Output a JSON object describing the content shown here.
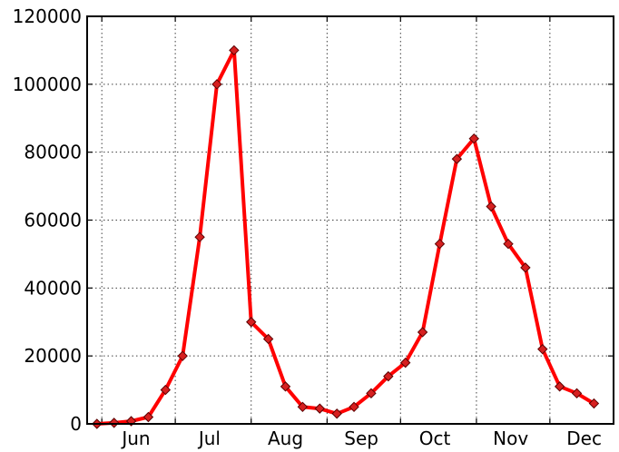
{
  "chart_data": {
    "type": "line",
    "title": "",
    "xlabel": "",
    "ylabel": "",
    "grid": true,
    "legend": "none",
    "xlim": [
      "2012-05-26",
      "2012-12-27"
    ],
    "ylim": [
      0,
      120000
    ],
    "x_tick_labels": [
      {
        "date": "2012-06-15",
        "label": "Jun"
      },
      {
        "date": "2012-07-15",
        "label": "Jul"
      },
      {
        "date": "2012-08-15",
        "label": "Aug"
      },
      {
        "date": "2012-09-15",
        "label": "Sep"
      },
      {
        "date": "2012-10-15",
        "label": "Oct"
      },
      {
        "date": "2012-11-15",
        "label": "Nov"
      },
      {
        "date": "2012-12-15",
        "label": "Dec"
      }
    ],
    "x_gridlines": [
      "2012-06-01",
      "2012-07-01",
      "2012-08-01",
      "2012-09-01",
      "2012-10-01",
      "2012-11-01",
      "2012-12-01"
    ],
    "y_ticks": [
      0,
      20000,
      40000,
      60000,
      80000,
      100000,
      120000
    ],
    "y_tick_labels": [
      "0",
      "20000",
      "40000",
      "60000",
      "80000",
      "100000",
      "120000"
    ],
    "series": [
      {
        "color": "#ff0000",
        "marker": "diamond",
        "marker_color": "#d62020",
        "points": [
          {
            "x": "2012-05-30",
            "y": 0
          },
          {
            "x": "2012-06-06",
            "y": 300
          },
          {
            "x": "2012-06-13",
            "y": 800
          },
          {
            "x": "2012-06-20",
            "y": 2000
          },
          {
            "x": "2012-06-27",
            "y": 10000
          },
          {
            "x": "2012-07-04",
            "y": 20000
          },
          {
            "x": "2012-07-11",
            "y": 55000
          },
          {
            "x": "2012-07-18",
            "y": 100000
          },
          {
            "x": "2012-07-25",
            "y": 110000
          },
          {
            "x": "2012-08-01",
            "y": 30000
          },
          {
            "x": "2012-08-08",
            "y": 25000
          },
          {
            "x": "2012-08-15",
            "y": 11000
          },
          {
            "x": "2012-08-22",
            "y": 5000
          },
          {
            "x": "2012-08-29",
            "y": 4500
          },
          {
            "x": "2012-09-05",
            "y": 3000
          },
          {
            "x": "2012-09-12",
            "y": 5000
          },
          {
            "x": "2012-09-19",
            "y": 9000
          },
          {
            "x": "2012-09-26",
            "y": 14000
          },
          {
            "x": "2012-10-03",
            "y": 18000
          },
          {
            "x": "2012-10-10",
            "y": 27000
          },
          {
            "x": "2012-10-17",
            "y": 53000
          },
          {
            "x": "2012-10-24",
            "y": 78000
          },
          {
            "x": "2012-10-31",
            "y": 84000
          },
          {
            "x": "2012-11-07",
            "y": 64000
          },
          {
            "x": "2012-11-14",
            "y": 53000
          },
          {
            "x": "2012-11-21",
            "y": 46000
          },
          {
            "x": "2012-11-28",
            "y": 22000
          },
          {
            "x": "2012-12-05",
            "y": 11000
          },
          {
            "x": "2012-12-12",
            "y": 9000
          },
          {
            "x": "2012-12-19",
            "y": 6000
          }
        ]
      }
    ]
  }
}
